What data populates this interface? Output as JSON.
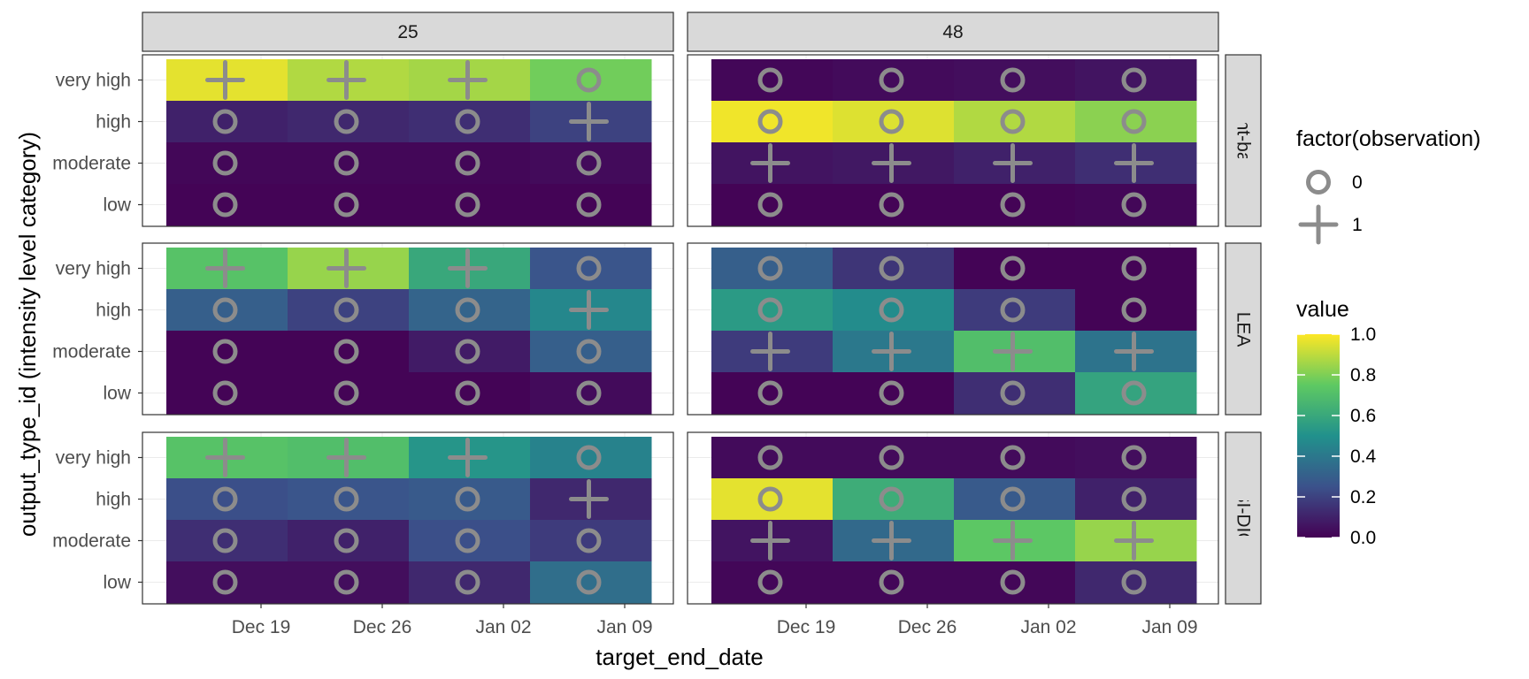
{
  "chart_data": {
    "type": "heatmap",
    "xlabel": "target_end_date",
    "ylabel": "output_type_id (intensity level category)",
    "x_ticks": [
      "Dec 19",
      "Dec 26",
      "Jan 02",
      "Jan 09"
    ],
    "y_categories": [
      "very high",
      "high",
      "moderate",
      "low"
    ],
    "facet_columns": [
      "25",
      "48"
    ],
    "facet_rows": [
      "Flusight-baseline",
      "MOBS-GLEAM_FLUH",
      "PSI-DICE"
    ],
    "legend_shape": {
      "title": "factor(observation)",
      "entries": [
        {
          "label": "0",
          "shape": "circle"
        },
        {
          "label": "1",
          "shape": "plus"
        }
      ]
    },
    "legend_fill": {
      "title": "value",
      "breaks": [
        "0.0",
        "0.2",
        "0.4",
        "0.6",
        "0.8",
        "1.0"
      ],
      "range": [
        0,
        1
      ],
      "palette": [
        "#440154",
        "#3b528b",
        "#21918c",
        "#5ec962",
        "#fde725"
      ]
    },
    "marker_color": "#8c8c8c",
    "panels": [
      {
        "model": "Flusight-baseline",
        "location": "25",
        "values": [
          [
            0.96,
            0.88,
            0.86,
            0.78
          ],
          [
            0.1,
            0.12,
            0.14,
            0.2
          ],
          [
            0.02,
            0.02,
            0.02,
            0.03
          ],
          [
            0.01,
            0.01,
            0.01,
            0.01
          ]
        ],
        "observation": [
          [
            1,
            1,
            1,
            0
          ],
          [
            0,
            0,
            0,
            1
          ],
          [
            0,
            0,
            0,
            0
          ],
          [
            0,
            0,
            0,
            0
          ]
        ]
      },
      {
        "model": "Flusight-baseline",
        "location": "48",
        "values": [
          [
            0.02,
            0.03,
            0.04,
            0.06
          ],
          [
            0.98,
            0.95,
            0.88,
            0.82
          ],
          [
            0.06,
            0.07,
            0.1,
            0.14
          ],
          [
            0.01,
            0.01,
            0.01,
            0.02
          ]
        ],
        "observation": [
          [
            0,
            0,
            0,
            0
          ],
          [
            0,
            0,
            0,
            0
          ],
          [
            1,
            1,
            1,
            1
          ],
          [
            0,
            0,
            0,
            0
          ]
        ]
      },
      {
        "model": "MOBS-GLEAM_FLUH",
        "location": "25",
        "values": [
          [
            0.72,
            0.84,
            0.6,
            0.26
          ],
          [
            0.3,
            0.2,
            0.32,
            0.46
          ],
          [
            0.01,
            0.01,
            0.08,
            0.3
          ],
          [
            0.01,
            0.01,
            0.01,
            0.03
          ]
        ],
        "observation": [
          [
            1,
            1,
            1,
            0
          ],
          [
            0,
            0,
            0,
            1
          ],
          [
            0,
            0,
            0,
            0
          ],
          [
            0,
            0,
            0,
            0
          ]
        ]
      },
      {
        "model": "MOBS-GLEAM_FLUH",
        "location": "48",
        "values": [
          [
            0.3,
            0.16,
            0.01,
            0.01
          ],
          [
            0.54,
            0.48,
            0.18,
            0.01
          ],
          [
            0.18,
            0.4,
            0.7,
            0.38
          ],
          [
            0.01,
            0.01,
            0.14,
            0.58
          ]
        ],
        "observation": [
          [
            0,
            0,
            0,
            0
          ],
          [
            0,
            0,
            0,
            0
          ],
          [
            1,
            1,
            1,
            1
          ],
          [
            0,
            0,
            0,
            0
          ]
        ]
      },
      {
        "model": "PSI-DICE",
        "location": "25",
        "values": [
          [
            0.72,
            0.7,
            0.52,
            0.44
          ],
          [
            0.24,
            0.26,
            0.28,
            0.12
          ],
          [
            0.14,
            0.1,
            0.24,
            0.18
          ],
          [
            0.04,
            0.04,
            0.12,
            0.36
          ]
        ],
        "observation": [
          [
            1,
            1,
            1,
            0
          ],
          [
            0,
            0,
            0,
            1
          ],
          [
            0,
            0,
            0,
            0
          ],
          [
            0,
            0,
            0,
            0
          ]
        ]
      },
      {
        "model": "PSI-DICE",
        "location": "48",
        "values": [
          [
            0.03,
            0.03,
            0.03,
            0.04
          ],
          [
            0.96,
            0.62,
            0.28,
            0.1
          ],
          [
            0.06,
            0.34,
            0.74,
            0.84
          ],
          [
            0.02,
            0.02,
            0.02,
            0.12
          ]
        ],
        "observation": [
          [
            0,
            0,
            0,
            0
          ],
          [
            0,
            0,
            0,
            0
          ],
          [
            1,
            1,
            1,
            1
          ],
          [
            0,
            0,
            0,
            0
          ]
        ]
      }
    ]
  }
}
